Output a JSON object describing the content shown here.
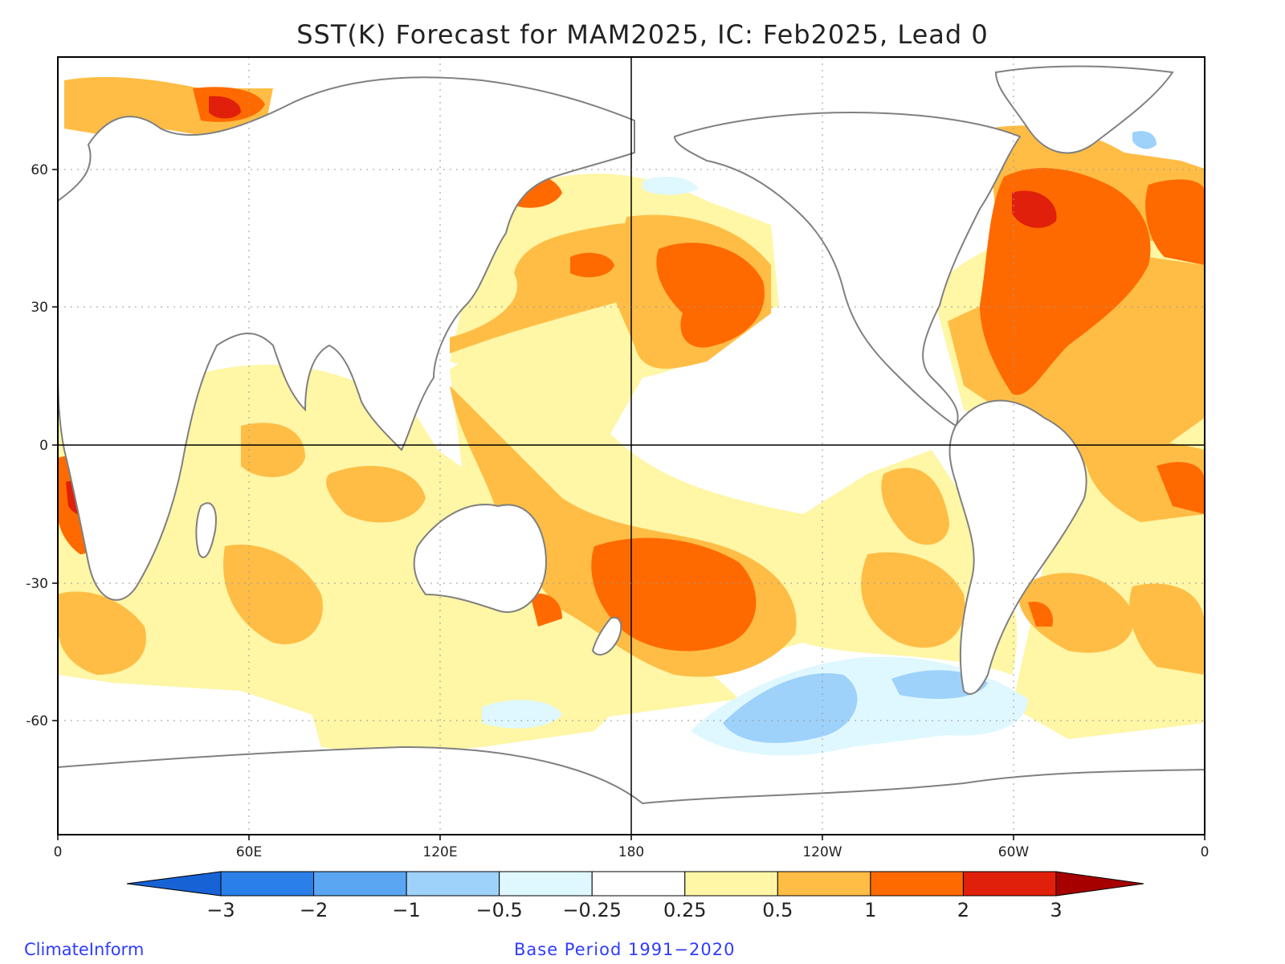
{
  "title": "SST(K) Forecast for MAM2025, IC: Feb2025, Lead 0",
  "x_ticks": [
    "0",
    "60E",
    "120E",
    "180",
    "120W",
    "60W",
    "0"
  ],
  "y_ticks": [
    "60",
    "30",
    "0",
    "-30",
    "-60"
  ],
  "colorbar": {
    "labels": [
      "-3",
      "-2",
      "-1",
      "-0.5",
      "-0.25",
      "0.25",
      "0.5",
      "1",
      "2",
      "3"
    ],
    "colors": [
      "#1763d6",
      "#2a7fe8",
      "#5aa6f2",
      "#9ed2fb",
      "#dff8ff",
      "#ffffff",
      "#fff6a6",
      "#ffbd45",
      "#ff6a00",
      "#e0200a",
      "#a60000"
    ]
  },
  "credit_left": "ClimateInform",
  "credit_right": "Base Period 1991-2020",
  "colors": {
    "land_outline": "#808080",
    "frame": "#000000",
    "credit_text": "#2f3cff"
  }
}
